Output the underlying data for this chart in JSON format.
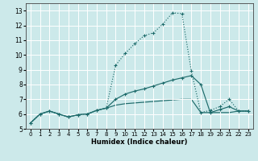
{
  "xlabel": "Humidex (Indice chaleur)",
  "xlim": [
    -0.5,
    23.5
  ],
  "ylim": [
    5,
    13.5
  ],
  "yticks": [
    5,
    6,
    7,
    8,
    9,
    10,
    11,
    12,
    13
  ],
  "xticks": [
    0,
    1,
    2,
    3,
    4,
    5,
    6,
    7,
    8,
    9,
    10,
    11,
    12,
    13,
    14,
    15,
    16,
    17,
    18,
    19,
    20,
    21,
    22,
    23
  ],
  "bg_color": "#cce9ea",
  "grid_color": "#ffffff",
  "line_color": "#1e6b6b",
  "line1_x": [
    0,
    1,
    2,
    3,
    4,
    5,
    6,
    7,
    8,
    9,
    10,
    11,
    12,
    13,
    14,
    15,
    16,
    17,
    18,
    19,
    20,
    21,
    22,
    23
  ],
  "line1_y": [
    5.4,
    6.0,
    6.2,
    6.0,
    5.8,
    5.95,
    6.0,
    6.25,
    6.4,
    9.3,
    10.1,
    10.75,
    11.3,
    11.5,
    12.1,
    12.85,
    12.8,
    8.9,
    6.1,
    6.25,
    6.5,
    7.0,
    6.2,
    6.2
  ],
  "line2_x": [
    0,
    1,
    2,
    3,
    4,
    5,
    6,
    7,
    8,
    9,
    10,
    11,
    12,
    13,
    14,
    15,
    16,
    17,
    18,
    19,
    20,
    21,
    22,
    23
  ],
  "line2_y": [
    5.4,
    6.0,
    6.2,
    6.0,
    5.8,
    5.95,
    6.0,
    6.25,
    6.4,
    7.0,
    7.35,
    7.55,
    7.7,
    7.9,
    8.1,
    8.3,
    8.45,
    8.6,
    8.0,
    6.1,
    6.3,
    6.5,
    6.2,
    6.2
  ],
  "line3_x": [
    0,
    1,
    2,
    3,
    4,
    5,
    6,
    7,
    8,
    9,
    10,
    11,
    12,
    13,
    14,
    15,
    16,
    17,
    18,
    19,
    20,
    21,
    22,
    23
  ],
  "line3_y": [
    5.4,
    6.0,
    6.2,
    6.0,
    5.8,
    5.95,
    6.0,
    6.25,
    6.4,
    6.6,
    6.7,
    6.75,
    6.8,
    6.85,
    6.9,
    6.95,
    7.0,
    7.0,
    6.1,
    6.1,
    6.1,
    6.1,
    6.2,
    6.2
  ]
}
